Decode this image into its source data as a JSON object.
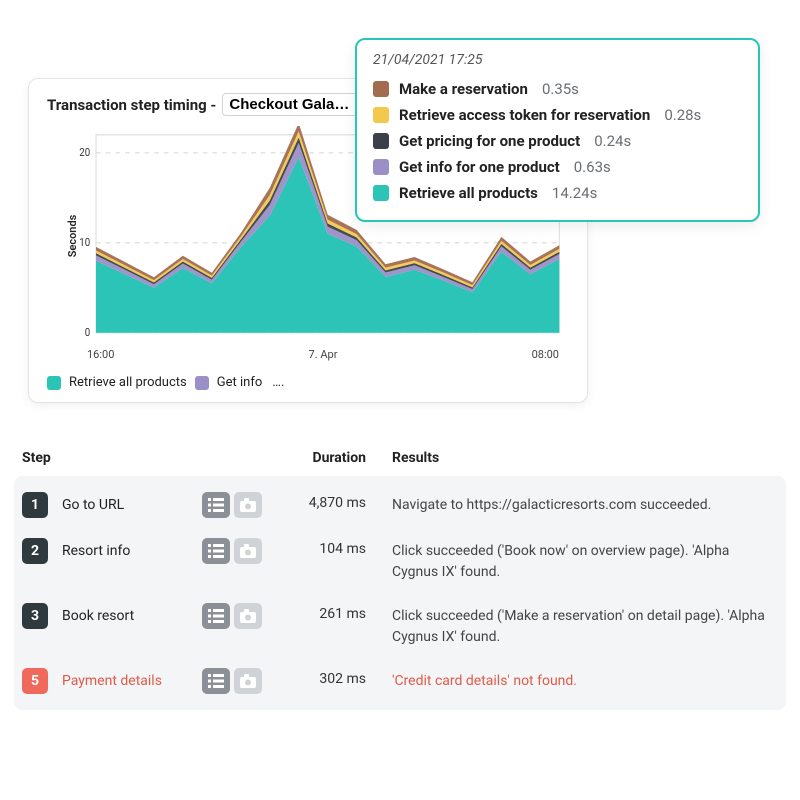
{
  "colors": {
    "accent": "#26c6b9",
    "tooltip_border": "#26c6b9",
    "badge_ok": "#2f3a3f",
    "badge_err": "#ef6a5a",
    "icon_dark": "#8a9096",
    "icon_light": "#cfd3d7",
    "rows_bg": "#f4f5f6",
    "text_muted": "#6a6e73",
    "error_text": "#e05a4a"
  },
  "chart": {
    "title_prefix": "Transaction step timing - ",
    "selected": "Checkout Gala…",
    "title_fontsize": 15,
    "y_axis_label": "Seconds",
    "y_axis_fontsize": 11,
    "ylim": [
      0,
      22
    ],
    "yticks": [
      0,
      10,
      20
    ],
    "grid_color": "#d9dcde",
    "background_color": "#ffffff",
    "xticks": [
      "16:00",
      "7. Apr",
      "08:00"
    ],
    "series": [
      {
        "name": "Retrieve all products",
        "color": "#2bc4b6",
        "values": [
          8,
          6.5,
          5,
          7.2,
          5.5,
          9.5,
          13,
          19.5,
          11,
          9.6,
          6.2,
          7,
          5.8,
          4.5,
          9,
          6.5,
          8.2
        ]
      },
      {
        "name": "Get info for one product",
        "color": "#9b8fc7",
        "values": [
          0.6,
          0.5,
          0.4,
          0.5,
          0.4,
          0.6,
          1.2,
          1.6,
          0.8,
          0.7,
          0.5,
          0.5,
          0.4,
          0.35,
          0.6,
          0.5,
          0.55
        ]
      },
      {
        "name": "Get pricing for one product",
        "color": "#3a414a",
        "values": [
          0.25,
          0.22,
          0.2,
          0.22,
          0.2,
          0.26,
          0.5,
          0.6,
          0.35,
          0.3,
          0.24,
          0.24,
          0.22,
          0.2,
          0.28,
          0.24,
          0.26
        ]
      },
      {
        "name": "Retrieve access token for reservation",
        "color": "#f2c94c",
        "values": [
          0.3,
          0.28,
          0.25,
          0.28,
          0.25,
          0.32,
          0.6,
          0.7,
          0.42,
          0.36,
          0.3,
          0.3,
          0.28,
          0.25,
          0.34,
          0.3,
          0.32
        ]
      },
      {
        "name": "Make a reservation",
        "color": "#a36b4f",
        "values": [
          0.4,
          0.36,
          0.32,
          0.36,
          0.32,
          0.4,
          0.8,
          0.9,
          0.55,
          0.48,
          0.38,
          0.38,
          0.35,
          0.32,
          0.44,
          0.38,
          0.4
        ]
      }
    ],
    "legend": [
      {
        "label": "Retrieve all products",
        "color": "#2bc4b6"
      },
      {
        "label": "Get info",
        "color": "#9b8fc7"
      },
      {
        "label": "….",
        "color": null
      }
    ]
  },
  "tooltip": {
    "timestamp": "21/04/2021 17:25",
    "rows": [
      {
        "color": "#a36b4f",
        "label": "Make a reservation",
        "value": "0.35s"
      },
      {
        "color": "#f2c94c",
        "label": "Retrieve access token for reservation",
        "value": "0.28s"
      },
      {
        "color": "#3a414a",
        "label": "Get pricing for one product",
        "value": "0.24s"
      },
      {
        "color": "#9b8fc7",
        "label": "Get info for one product",
        "value": "0.63s"
      },
      {
        "color": "#2bc4b6",
        "label": "Retrieve all products",
        "value": "14.24s"
      }
    ]
  },
  "table": {
    "columns": {
      "step": "Step",
      "duration": "Duration",
      "results": "Results"
    },
    "rows": [
      {
        "num": "1",
        "name": "Go to URL",
        "duration": "4,870 ms",
        "result": "Navigate to https://galacticresorts.com succeeded.",
        "status": "ok"
      },
      {
        "num": "2",
        "name": "Resort info",
        "duration": "104 ms",
        "result": "Click succeeded ('Book now' on overview page). 'Alpha Cygnus IX' found.",
        "status": "ok"
      },
      {
        "num": "3",
        "name": "Book resort",
        "duration": "261 ms",
        "result": "Click succeeded ('Make a reservation' on detail page). 'Alpha Cygnus IX' found.",
        "status": "ok"
      },
      {
        "num": "5",
        "name": "Payment details",
        "duration": "302 ms",
        "result": "'Credit card details' not found.",
        "status": "error"
      }
    ]
  }
}
